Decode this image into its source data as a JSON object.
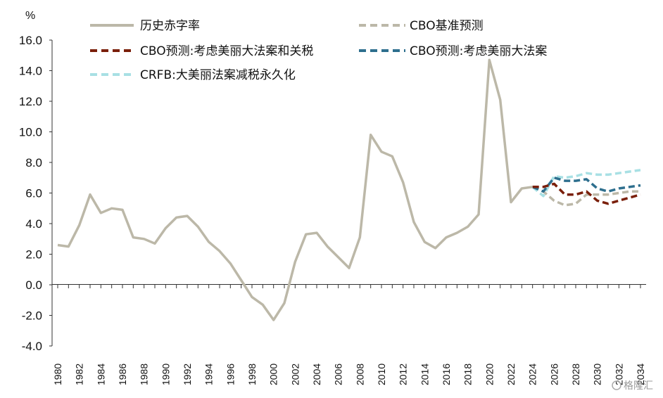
{
  "chart_data": {
    "type": "line",
    "y_unit": "%",
    "ylim": [
      -4.0,
      16.0
    ],
    "yticks": [
      "16.0",
      "14.0",
      "12.0",
      "10.0",
      "8.0",
      "6.0",
      "4.0",
      "2.0",
      "0.0",
      "-2.0",
      "-4.0"
    ],
    "xlim": [
      1980,
      2034
    ],
    "xticks": [
      "1980",
      "1982",
      "1984",
      "1986",
      "1988",
      "1990",
      "1992",
      "1994",
      "1996",
      "1998",
      "2000",
      "2002",
      "2004",
      "2006",
      "2008",
      "2010",
      "2012",
      "2014",
      "2016",
      "2018",
      "2020",
      "2022",
      "2024",
      "2026",
      "2028",
      "2030",
      "2032",
      "2034"
    ],
    "grid": false,
    "legend_position": "top",
    "series": [
      {
        "name": "历史赤字率",
        "color": "#bcb8a8",
        "style": "solid",
        "x": [
          1980,
          1981,
          1982,
          1983,
          1984,
          1985,
          1986,
          1987,
          1988,
          1989,
          1990,
          1991,
          1992,
          1993,
          1994,
          1995,
          1996,
          1997,
          1998,
          1999,
          2000,
          2001,
          2002,
          2003,
          2004,
          2005,
          2006,
          2007,
          2008,
          2009,
          2010,
          2011,
          2012,
          2013,
          2014,
          2015,
          2016,
          2017,
          2018,
          2019,
          2020,
          2021,
          2022,
          2023,
          2024
        ],
        "y": [
          2.6,
          2.5,
          3.9,
          5.9,
          4.7,
          5.0,
          4.9,
          3.1,
          3.0,
          2.7,
          3.7,
          4.4,
          4.5,
          3.8,
          2.8,
          2.2,
          1.4,
          0.3,
          -0.8,
          -1.3,
          -2.3,
          -1.2,
          1.5,
          3.3,
          3.4,
          2.5,
          1.8,
          1.1,
          3.1,
          9.8,
          8.7,
          8.4,
          6.7,
          4.1,
          2.8,
          2.4,
          3.1,
          3.4,
          3.8,
          4.6,
          14.7,
          12.1,
          5.4,
          6.3,
          6.4
        ]
      },
      {
        "name": "CBO基准预测",
        "color": "#bcb8a8",
        "style": "dashed",
        "x": [
          2024,
          2025,
          2026,
          2027,
          2028,
          2029,
          2030,
          2031,
          2032,
          2033,
          2034
        ],
        "y": [
          6.4,
          6.1,
          5.5,
          5.2,
          5.3,
          5.9,
          5.9,
          5.9,
          6.0,
          6.1,
          6.1
        ]
      },
      {
        "name": "CBO预测:考虑美丽大法案和关税",
        "color": "#7a1f0a",
        "style": "dashed",
        "x": [
          2024,
          2025,
          2026,
          2027,
          2028,
          2029,
          2030,
          2031,
          2032,
          2033,
          2034
        ],
        "y": [
          6.4,
          6.4,
          6.6,
          5.9,
          5.9,
          6.1,
          5.5,
          5.3,
          5.5,
          5.7,
          5.9
        ]
      },
      {
        "name": "CBO预测:考虑美丽大法案",
        "color": "#2e6f8e",
        "style": "dashed",
        "x": [
          2024,
          2025,
          2026,
          2027,
          2028,
          2029,
          2030,
          2031,
          2032,
          2033,
          2034
        ],
        "y": [
          6.4,
          6.1,
          7.0,
          6.8,
          6.8,
          6.9,
          6.3,
          6.1,
          6.3,
          6.4,
          6.5
        ]
      },
      {
        "name": "CRFB:大美丽法案减税永久化",
        "color": "#a8e0e4",
        "style": "dashed",
        "x": [
          2024,
          2025,
          2026,
          2027,
          2028,
          2029,
          2030,
          2031,
          2032,
          2033,
          2034
        ],
        "y": [
          6.4,
          5.8,
          7.1,
          7.0,
          7.1,
          7.3,
          7.2,
          7.2,
          7.3,
          7.4,
          7.5
        ]
      }
    ]
  },
  "watermark": "格隆汇"
}
